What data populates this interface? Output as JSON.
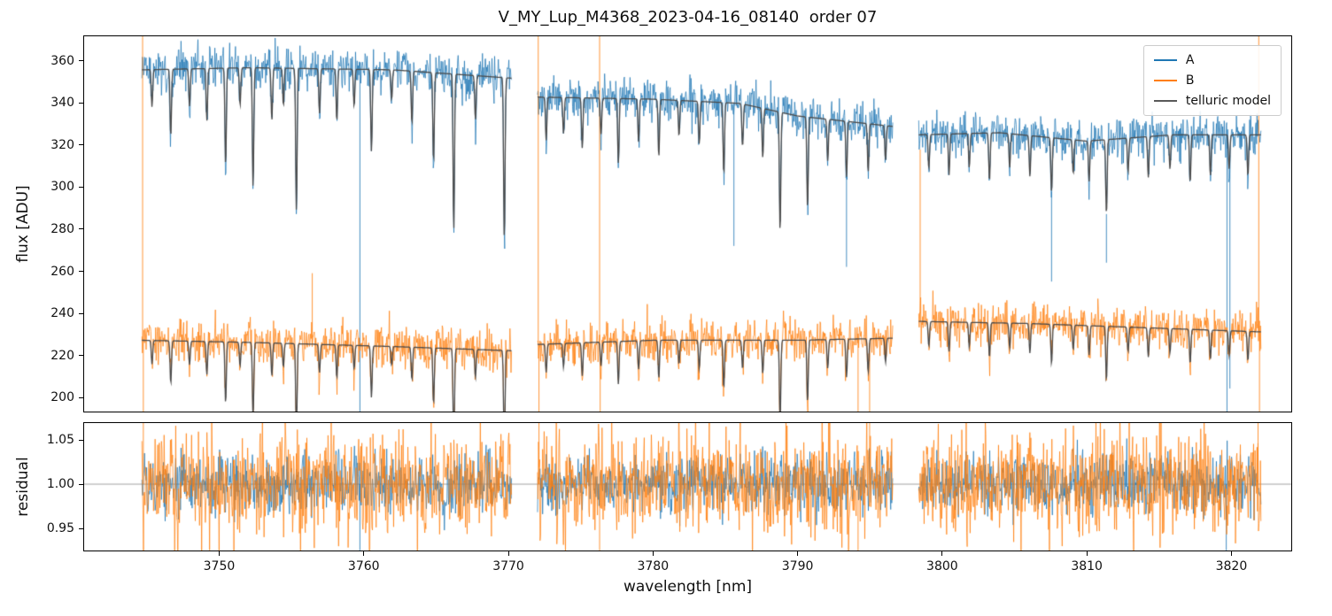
{
  "chart_data": {
    "type": "line",
    "title": "V_MY_Lup_M4368_2023-04-16_08140  order 07",
    "xlabel": "wavelength [nm]",
    "xlim": [
      3740.6,
      3824.2
    ],
    "xticks": [
      {
        "v": 3750,
        "label": "3750"
      },
      {
        "v": 3760,
        "label": "3760"
      },
      {
        "v": 3770,
        "label": "3770"
      },
      {
        "v": 3780,
        "label": "3780"
      },
      {
        "v": 3790,
        "label": "3790"
      },
      {
        "v": 3800,
        "label": "3800"
      },
      {
        "v": 3810,
        "label": "3810"
      },
      {
        "v": 3820,
        "label": "3820"
      }
    ],
    "legend": [
      {
        "label": "A",
        "color": "#1f77b4"
      },
      {
        "label": "B",
        "color": "#ff7f0e"
      },
      {
        "label": "telluric model",
        "color": "#595959"
      }
    ],
    "segments": [
      [
        3744.6,
        3770.2
      ],
      [
        3772.0,
        3796.6
      ],
      [
        3798.4,
        3822.1
      ]
    ],
    "points_per_segment": 700,
    "line_sigma": 0.07,
    "panels": [
      {
        "name": "flux",
        "ylabel": "flux [ADU]",
        "ylim": [
          193,
          372
        ],
        "yticks": [
          {
            "v": 200,
            "label": "200"
          },
          {
            "v": 220,
            "label": "220"
          },
          {
            "v": 240,
            "label": "240"
          },
          {
            "v": 260,
            "label": "260"
          },
          {
            "v": 280,
            "label": "280"
          },
          {
            "v": 300,
            "label": "300"
          },
          {
            "v": 320,
            "label": "320"
          },
          {
            "v": 340,
            "label": "340"
          },
          {
            "v": 360,
            "label": "360"
          }
        ],
        "series": [
          {
            "name": "A",
            "color": "#1f77b4",
            "noise_std": 4.8,
            "continuum": [
              [
                3744.6,
                356
              ],
              [
                3752,
                357
              ],
              [
                3762,
                356
              ],
              [
                3770.2,
                352
              ],
              [
                3772,
                343
              ],
              [
                3780,
                342
              ],
              [
                3786,
                340
              ],
              [
                3790,
                334
              ],
              [
                3796.6,
                329
              ],
              [
                3798.4,
                325
              ],
              [
                3804,
                326
              ],
              [
                3810,
                322
              ],
              [
                3816,
                325
              ],
              [
                3822.1,
                325
              ]
            ],
            "outliers": [
              [
                3759.7,
                60
              ],
              [
                3785.6,
                272
              ],
              [
                3793.4,
                262
              ],
              [
                3807.6,
                255
              ],
              [
                3811.4,
                264
              ],
              [
                3819.75,
                60
              ],
              [
                3819.95,
                204
              ]
            ]
          },
          {
            "name": "B",
            "color": "#ff7f0e",
            "noise_std": 4.8,
            "continuum": [
              [
                3744.6,
                227
              ],
              [
                3752,
                226
              ],
              [
                3762,
                224
              ],
              [
                3770.2,
                222
              ],
              [
                3772,
                225
              ],
              [
                3780,
                227
              ],
              [
                3790,
                227
              ],
              [
                3796.6,
                228
              ],
              [
                3798.4,
                236
              ],
              [
                3806,
                235
              ],
              [
                3814,
                233
              ],
              [
                3822.1,
                231
              ]
            ],
            "outliers": [
              [
                3744.65,
                600
              ],
              [
                3744.7,
                60
              ],
              [
                3756.4,
                259
              ],
              [
                3772.05,
                600
              ],
              [
                3772.1,
                60
              ],
              [
                3776.3,
                600
              ],
              [
                3776.34,
                60
              ],
              [
                3784.8,
                205
              ],
              [
                3794.2,
                60
              ],
              [
                3795.0,
                97
              ],
              [
                3798.5,
                318
              ],
              [
                3821.95,
                600
              ],
              [
                3822.0,
                60
              ]
            ]
          }
        ],
        "telluric_model": {
          "color": "#4a4a4a",
          "lines": [
            [
              3745.3,
              0.05
            ],
            [
              3746.6,
              0.09
            ],
            [
              3747.9,
              0.05
            ],
            [
              3749.1,
              0.07
            ],
            [
              3750.4,
              0.13
            ],
            [
              3751.4,
              0.05
            ],
            [
              3752.3,
              0.16
            ],
            [
              3753.6,
              0.07
            ],
            [
              3754.4,
              0.05
            ],
            [
              3755.3,
              0.19
            ],
            [
              3756.9,
              0.06
            ],
            [
              3758.1,
              0.07
            ],
            [
              3759.3,
              0.05
            ],
            [
              3760.5,
              0.11
            ],
            [
              3761.9,
              0.04
            ],
            [
              3763.3,
              0.07
            ],
            [
              3764.8,
              0.12
            ],
            [
              3766.2,
              0.21
            ],
            [
              3767.7,
              0.06
            ],
            [
              3769.7,
              0.22
            ],
            [
              3772.6,
              0.06
            ],
            [
              3773.8,
              0.05
            ],
            [
              3775.1,
              0.07
            ],
            [
              3776.4,
              0.05
            ],
            [
              3777.6,
              0.09
            ],
            [
              3779.0,
              0.06
            ],
            [
              3780.4,
              0.08
            ],
            [
              3781.8,
              0.05
            ],
            [
              3783.2,
              0.06
            ],
            [
              3784.9,
              0.1
            ],
            [
              3786.2,
              0.06
            ],
            [
              3787.6,
              0.07
            ],
            [
              3788.8,
              0.17
            ],
            [
              3790.7,
              0.13
            ],
            [
              3792.1,
              0.06
            ],
            [
              3793.4,
              0.08
            ],
            [
              3794.9,
              0.07
            ],
            [
              3796.1,
              0.05
            ],
            [
              3799.1,
              0.05
            ],
            [
              3800.5,
              0.06
            ],
            [
              3801.9,
              0.05
            ],
            [
              3803.3,
              0.07
            ],
            [
              3804.7,
              0.05
            ],
            [
              3806.1,
              0.06
            ],
            [
              3807.6,
              0.08
            ],
            [
              3809.1,
              0.05
            ],
            [
              3810.2,
              0.06
            ],
            [
              3811.4,
              0.11
            ],
            [
              3812.9,
              0.05
            ],
            [
              3814.3,
              0.06
            ],
            [
              3815.8,
              0.05
            ],
            [
              3817.2,
              0.07
            ],
            [
              3818.6,
              0.06
            ],
            [
              3819.9,
              0.05
            ],
            [
              3821.2,
              0.06
            ]
          ]
        }
      },
      {
        "name": "residual",
        "ylabel": "residual",
        "ylim": [
          0.924,
          1.07
        ],
        "baseline": 1.0,
        "yticks": [
          {
            "v": 0.95,
            "label": "0.95"
          },
          {
            "v": 1.0,
            "label": "1.00"
          },
          {
            "v": 1.05,
            "label": "1.05"
          }
        ],
        "series": [
          {
            "name": "A",
            "color": "#1f77b4",
            "noise_std": 0.017,
            "outliers": [
              [
                3759.7,
                0.9
              ],
              [
                3819.7,
                0.88
              ]
            ]
          },
          {
            "name": "B",
            "color": "#ff7f0e",
            "noise_std": 0.03,
            "outliers": [
              [
                3744.7,
                1.2
              ],
              [
                3772.1,
                1.25
              ],
              [
                3776.3,
                0.8
              ],
              [
                3794.2,
                0.85
              ],
              [
                3795.0,
                1.18
              ],
              [
                3821.9,
                1.2
              ]
            ]
          }
        ]
      }
    ]
  }
}
